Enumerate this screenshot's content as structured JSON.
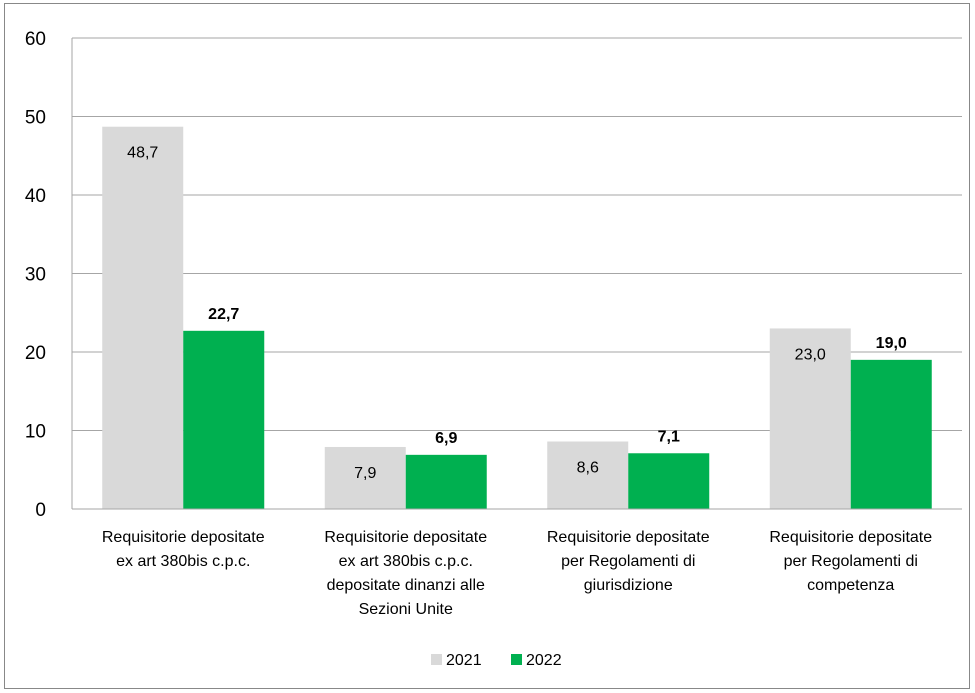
{
  "chart_data": {
    "type": "bar",
    "categories": [
      [
        "Requisitorie depositate",
        "ex art 380bis c.p.c."
      ],
      [
        "Requisitorie depositate",
        "ex art 380bis c.p.c.",
        "depositate dinanzi alle",
        "Sezioni Unite"
      ],
      [
        "Requisitorie depositate",
        "per Regolamenti di",
        "giurisdizione"
      ],
      [
        "Requisitorie depositate",
        "per Regolamenti di",
        "competenza"
      ]
    ],
    "series": [
      {
        "name": "2021",
        "values": [
          48.7,
          7.9,
          8.6,
          23.0
        ],
        "labels": [
          "48,7",
          "7,9",
          "8,6",
          "23,0"
        ],
        "color": "#d9d9d9",
        "label_bold": false
      },
      {
        "name": "2022",
        "values": [
          22.7,
          6.9,
          7.1,
          19.0
        ],
        "labels": [
          "22,7",
          "6,9",
          "7,1",
          "19,0"
        ],
        "color": "#00b050",
        "label_bold": true
      }
    ],
    "ylim": [
      0,
      60
    ],
    "yticks": [
      "0",
      "10",
      "20",
      "30",
      "40",
      "50",
      "60"
    ],
    "grid": true,
    "legend_position": "bottom",
    "xlabel": "",
    "ylabel": "",
    "title": ""
  }
}
